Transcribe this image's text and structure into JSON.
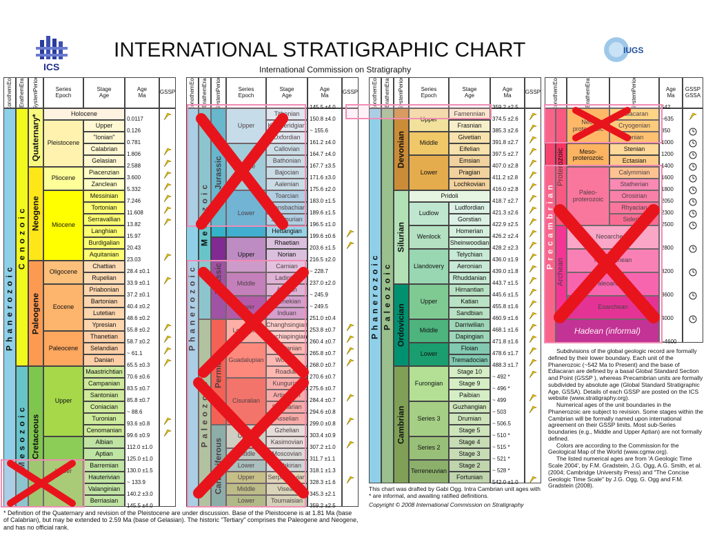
{
  "header": {
    "logo_left": "ICS",
    "title": "INTERNATIONAL STRATIGRAPHIC CHART",
    "subtitle": "International Commission on Stratigraphy",
    "logo_right": "IUGS"
  },
  "column_headers": [
    [
      "Eonothem",
      "Eon"
    ],
    [
      "Erathem",
      "Era"
    ],
    [
      "System",
      "Period"
    ],
    [
      "Series",
      "Epoch"
    ],
    [
      "Stage",
      "Age"
    ],
    [
      "Age",
      "Ma"
    ],
    [
      "GSSP"
    ]
  ],
  "panels": [
    {
      "eons": [
        "Phanerozoic"
      ],
      "eras": [
        "Cenozoic",
        "Mesozoic"
      ],
      "systems": [
        "Quaternary*",
        "Neogene",
        "Paleogene",
        "Cretaceous"
      ],
      "series": [
        "Pleistocene",
        "Pliocene",
        "Miocene",
        "Oligocene",
        "Eocene",
        "Paleocene",
        "Upper",
        "Lower"
      ],
      "stages": [
        "Holocene",
        "Upper",
        "\"Ionian\"",
        "Calabrian",
        "Gelasian",
        "Piacenzian",
        "Zanclean",
        "Messinian",
        "Tortonian",
        "Serravallian",
        "Langhian",
        "Burdigalian",
        "Aquitanian",
        "Chattian",
        "Rupelian",
        "Priabonian",
        "Bartonian",
        "Lutetian",
        "Ypresian",
        "Thanetian",
        "Selandian",
        "Danian",
        "Maastrichtian",
        "Campanian",
        "Santonian",
        "Coniacian",
        "Turonian",
        "Cenomanian",
        "Albian",
        "Aptian",
        "Barremian",
        "Hauterivian",
        "Valanginian",
        "Berriasian"
      ],
      "ages": [
        "0.0117",
        "0.126",
        "0.781",
        "1.806",
        "2.588",
        "3.600",
        "5.332",
        "7.246",
        "11.608",
        "13.82",
        "15.97",
        "20.43",
        "23.03",
        "28.4 ±0.1",
        "33.9 ±0.1",
        "37.2 ±0.1",
        "40.4 ±0.2",
        "48.6 ±0.2",
        "55.8 ±0.2",
        "58.7 ±0.2",
        "~ 61.1",
        "65.5 ±0.3",
        "70.6 ±0.6",
        "83.5 ±0.7",
        "85.8 ±0.7",
        "~ 88.6",
        "93.6 ±0.8",
        "99.6 ±0.9",
        "112.0 ±1.0",
        "125.0 ±1.0",
        "130.0 ±1.5",
        "~ 133.9",
        "140.2 ±3.0",
        "145.5 ±4.0"
      ]
    },
    {
      "top_age": "145.5 ±4.0",
      "eons": [
        "Phanerozoic"
      ],
      "eras": [
        "Mesozoic",
        "Paleozoic"
      ],
      "systems": [
        "Jurassic",
        "Triassic",
        "Permian",
        "Carboniferous"
      ],
      "series": [
        "Upper",
        "Middle",
        "Lower",
        "Upper",
        "Middle",
        "Lower",
        "Lopingian",
        "Guadalupian",
        "Cisuralian",
        "Upper",
        "Middle",
        "Lower",
        "Upper",
        "Middle",
        "Lower"
      ],
      "stages": [
        "Tithonian",
        "Kimmeridgian",
        "Oxfordian",
        "Callovian",
        "Bathonian",
        "Bajocian",
        "Aalenian",
        "Toarcian",
        "Pliensbachian",
        "Sinemurian",
        "Hettangian",
        "Rhaetian",
        "Norian",
        "Carnian",
        "Ladinian",
        "Anisian",
        "Olenekian",
        "Induan",
        "Changhsingian",
        "Wuchiapingian",
        "Capitanian",
        "Wordian",
        "Roadian",
        "Kungurian",
        "Artinskian",
        "Sakmarian",
        "Asselian",
        "Gzhelian",
        "Kasimovian",
        "Moscovian",
        "Bashkirian",
        "Serpukhovian",
        "Visean",
        "Tournaisian"
      ],
      "ages": [
        "150.8 ±4.0",
        "~ 155.6",
        "161.2 ±4.0",
        "164.7 ±4.0",
        "167.7 ±3.5",
        "171.6 ±3.0",
        "175.6 ±2.0",
        "183.0 ±1.5",
        "189.6 ±1.5",
        "196.5 ±1.0",
        "199.6 ±0.6",
        "203.6 ±1.5",
        "216.5 ±2.0",
        "~ 228.7",
        "237.0 ±2.0",
        "~ 245.9",
        "~ 249.5",
        "251.0 ±0.4",
        "253.8 ±0.7",
        "260.4 ±0.7",
        "265.8 ±0.7",
        "268.0 ±0.7",
        "270.6 ±0.7",
        "275.6 ±0.7",
        "284.4 ±0.7",
        "294.6 ±0.8",
        "299.0 ±0.8",
        "303.4 ±0.9",
        "307.2 ±1.0",
        "311.7 ±1.1",
        "318.1 ±1.3",
        "328.3 ±1.6",
        "345.3 ±2.1",
        "359.2 ±2.5"
      ]
    },
    {
      "top_age": "359.2 ±2.5",
      "eons": [
        "Phanerozoic"
      ],
      "eras": [
        "Paleozoic"
      ],
      "systems": [
        "Devonian",
        "Silurian",
        "Ordovician",
        "Cambrian"
      ],
      "series": [
        "Upper",
        "Middle",
        "Lower",
        "Ludlow",
        "Wenlock",
        "Llandovery",
        "Upper",
        "Middle",
        "Lower",
        "Furongian",
        "Series 3",
        "Series 2",
        "Terreneuvian"
      ],
      "stages": [
        "Famennian",
        "Frasnian",
        "Givetian",
        "Eifelian",
        "Emsian",
        "Pragian",
        "Lochkovian",
        "Pridoli",
        "Ludfordian",
        "Gorstian",
        "Homerian",
        "Sheinwoodian",
        "Telychian",
        "Aeronian",
        "Rhuddanian",
        "Hirnantian",
        "Katian",
        "Sandbian",
        "Darriwilian",
        "Dapingian",
        "Floian",
        "Tremadocian",
        "Stage 10",
        "Stage 9",
        "Paibian",
        "Guzhangian",
        "Drumian",
        "Stage 5",
        "Stage 4",
        "Stage 3",
        "Stage 2",
        "Fortunian"
      ],
      "ages": [
        "374.5 ±2.6",
        "385.3 ±2.6",
        "391.8 ±2.7",
        "397.5 ±2.7",
        "407.0 ±2.8",
        "411.2 ±2.8",
        "416.0 ±2.8",
        "418.7 ±2.7",
        "421.3 ±2.6",
        "422.9 ±2.5",
        "426.2 ±2.4",
        "428.2 ±2.3",
        "436.0 ±1.9",
        "439.0 ±1.8",
        "443.7 ±1.5",
        "445.6 ±1.5",
        "455.8 ±1.6",
        "460.9 ±1.6",
        "468.1 ±1.6",
        "471.8 ±1.6",
        "478.6 ±1.7",
        "488.3 ±1.7",
        "~ 492 *",
        "~ 496 *",
        "~ 499",
        "~ 503",
        "~ 506.5",
        "~ 510 *",
        "~ 515 *",
        "~ 521 *",
        "~ 528 *",
        "542.0 ±1.0"
      ]
    }
  ],
  "precambrian": {
    "gssp_header": [
      "GSSP",
      "GSSA"
    ],
    "supereon": "Precambrian",
    "eons": [
      "Proterozoic",
      "Archean"
    ],
    "hadean": "Hadean (informal)",
    "eras": [
      [
        "Neo-",
        "proterozoic"
      ],
      [
        "Meso-",
        "proterozoic"
      ],
      [
        "Paleo-",
        "proterozoic"
      ],
      [
        "Neoarchean"
      ],
      [
        "Mesoarchean"
      ],
      [
        "Paleoarchean"
      ],
      [
        "Eoarchean"
      ]
    ],
    "systems": [
      "Ediacaran",
      "Cryogenian",
      "Tonian",
      "Stenian",
      "Ectasian",
      "Calymmian",
      "Statherian",
      "Orosirian",
      "Rhyacian",
      "Siderian"
    ],
    "top_age": "542",
    "ages": [
      "~635",
      "850",
      "1000",
      "1200",
      "1400",
      "1600",
      "1800",
      "2050",
      "2300",
      "2500",
      "2800",
      "3200",
      "3600",
      "4000",
      "~4600"
    ]
  },
  "notes": {
    "quaternary": "* Definition of the Quaternary and revision of the Pleistocene are under discussion.  Base of the Pleistocene is at 1.81 Ma (base of Calabrian), but may be extended to 2.59 Ma (base of Gelasian).  The historic \"Tertiary\" comprises the Paleogene and Neogene, and has no official rank.",
    "draft": "This chart was drafted by Gabi Ogg. Intra Cambrian unit ages with * are informal, and awaiting ratified definitions.",
    "copyright": "Copyright © 2008 International Commission on Stratigraphy",
    "paragraphs": [
      "Subdivisions of the global geologic record are formally defined by their lower boundary.  Each unit of the Phanerozoic (~542 Ma to Present) and the base of Ediacaran are defined by a basal Global Standard Section and Point (GSSP ), whereas Precambrian units are formally subdivided by absolute age (Global Standard Stratigraphic Age, GSSA).  Details of each GSSP are posted on the ICS website (www.stratigraphy.org).",
      "Numerical ages of the unit boundaries in the Phanerozoic are subject to revision. Some stages within the Cambrian will be formally named upon international agreement on their GSSP limits. Most sub-Series boundaries (e.g., Middle and Upper Aptian) are not formally defined.",
      "Colors are according to the Commission for the Geological Map of the World (www.cgmw.org).",
      "The listed numerical ages are from 'A Geologic Time Scale 2004', by F.M. Gradstein, J.G. Ogg, A.G. Smith, et al. (2004; Cambridge University Press) and \"The Concise Geologic Time Scale\" by J.G. Ogg, G. Ogg and F.M. Gradstein (2008)."
    ]
  }
}
